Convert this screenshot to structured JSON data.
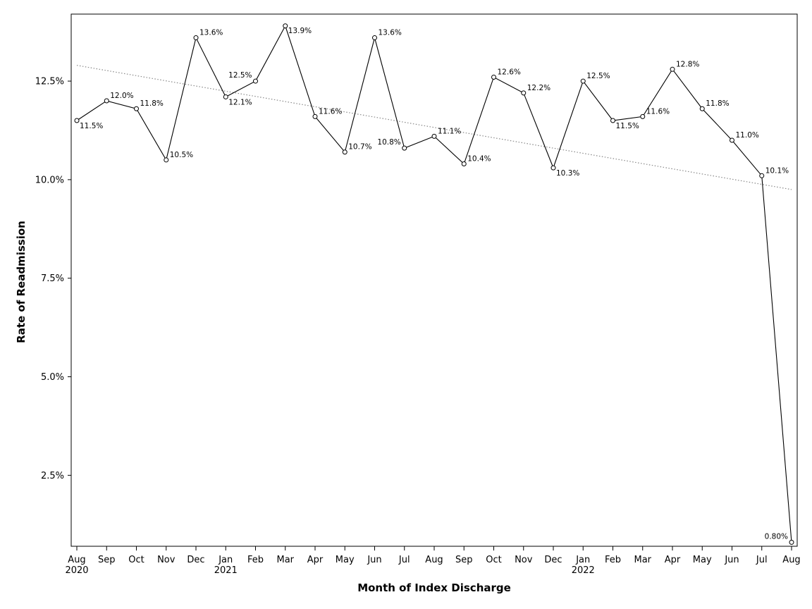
{
  "chart_data": {
    "type": "line",
    "xlabel": "Month of Index Discharge",
    "ylabel": "Rate of Readmission",
    "ylim": [
      0.7,
      14.2
    ],
    "yticks": [
      "2.5%",
      "5.0%",
      "7.5%",
      "10.0%",
      "12.5%"
    ],
    "grid": false,
    "x": [
      "Aug 2020",
      "Sep 2020",
      "Oct 2020",
      "Nov 2020",
      "Dec 2020",
      "Jan 2021",
      "Feb 2021",
      "Mar 2021",
      "Apr 2021",
      "May 2021",
      "Jun 2021",
      "Jul 2021",
      "Aug 2021",
      "Sep 2021",
      "Oct 2021",
      "Nov 2021",
      "Dec 2021",
      "Jan 2022",
      "Feb 2022",
      "Mar 2022",
      "Apr 2022",
      "May 2022",
      "Jun 2022",
      "Jul 2022",
      "Aug 2022"
    ],
    "x_tick_months": [
      "Aug",
      "Sep",
      "Oct",
      "Nov",
      "Dec",
      "Jan",
      "Feb",
      "Mar",
      "Apr",
      "May",
      "Jun",
      "Jul",
      "Aug",
      "Sep",
      "Oct",
      "Nov",
      "Dec",
      "Jan",
      "Feb",
      "Mar",
      "Apr",
      "May",
      "Jun",
      "Jul",
      "Aug"
    ],
    "x_tick_years": [
      "2020",
      "",
      "",
      "",
      "",
      "2021",
      "",
      "",
      "",
      "",
      "",
      "",
      "",
      "",
      "",
      "",
      "",
      "2022",
      "",
      "",
      "",
      "",
      "",
      "",
      ""
    ],
    "series": [
      {
        "values": [
          11.5,
          12.0,
          11.8,
          10.5,
          13.6,
          12.1,
          12.5,
          13.9,
          11.6,
          10.7,
          13.6,
          10.8,
          11.1,
          10.4,
          12.6,
          12.2,
          10.3,
          12.5,
          11.5,
          11.6,
          12.8,
          11.8,
          11.0,
          10.1,
          0.8
        ],
        "labels": [
          "11.5%",
          "12.0%",
          "11.8%",
          "10.5%",
          "13.6%",
          "12.1%",
          "12.5%",
          "13.9%",
          "11.6%",
          "10.7%",
          "13.6%",
          "10.8%",
          "11.1%",
          "10.4%",
          "12.6%",
          "12.2%",
          "10.3%",
          "12.5%",
          "11.5%",
          "11.6%",
          "12.8%",
          "11.8%",
          "11.0%",
          "10.1%",
          "0.80%"
        ]
      }
    ],
    "trend_line": {
      "style": "dotted",
      "start": 12.9,
      "end": 9.75
    },
    "colors": {
      "line": "#000000",
      "trend": "#888888"
    }
  }
}
